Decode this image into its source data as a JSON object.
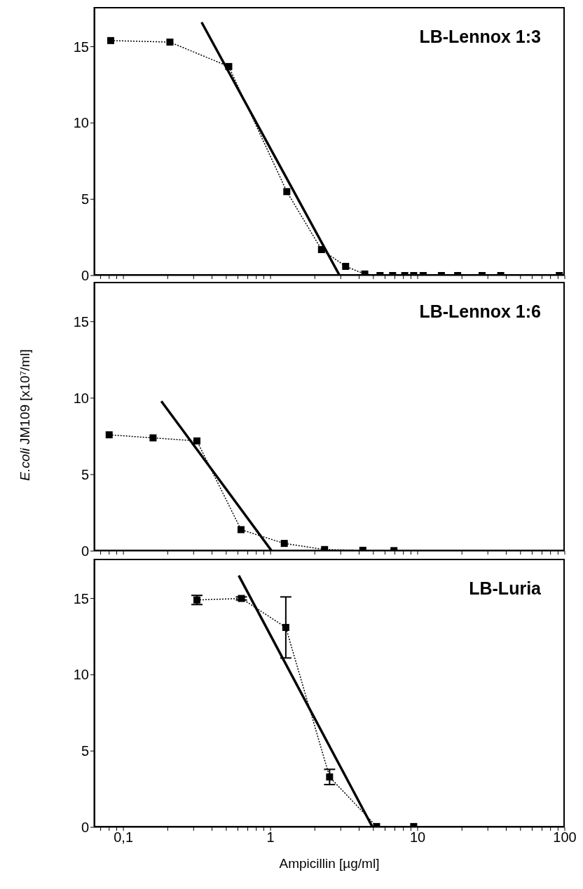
{
  "chart_data": [
    {
      "type": "line",
      "title": "LB-Lennox 1:3",
      "log": "x",
      "xlim": [
        0.063,
        100
      ],
      "xticks": [
        {
          "value": 0.07,
          "label": null
        },
        {
          "value": 0.08,
          "label": null
        },
        {
          "value": 0.09,
          "label": null
        },
        {
          "value": 0.1,
          "label": null
        },
        {
          "value": 0.2,
          "label": null
        },
        {
          "value": 0.3,
          "label": null
        },
        {
          "value": 0.4,
          "label": null
        },
        {
          "value": 0.5,
          "label": null
        },
        {
          "value": 0.6,
          "label": null
        },
        {
          "value": 0.7,
          "label": null
        },
        {
          "value": 0.8,
          "label": null
        },
        {
          "value": 0.9,
          "label": null
        },
        {
          "value": 1,
          "label": null
        },
        {
          "value": 2,
          "label": null
        },
        {
          "value": 3,
          "label": null
        },
        {
          "value": 4,
          "label": null
        },
        {
          "value": 5,
          "label": null
        },
        {
          "value": 6,
          "label": null
        },
        {
          "value": 7,
          "label": null
        },
        {
          "value": 8,
          "label": null
        },
        {
          "value": 9,
          "label": null
        },
        {
          "value": 10,
          "label": null
        },
        {
          "value": 20,
          "label": null
        },
        {
          "value": 30,
          "label": null
        },
        {
          "value": 40,
          "label": null
        },
        {
          "value": 50,
          "label": null
        },
        {
          "value": 60,
          "label": null
        },
        {
          "value": 70,
          "label": null
        },
        {
          "value": 80,
          "label": null
        },
        {
          "value": 90,
          "label": null
        },
        {
          "value": 100,
          "label": null
        }
      ],
      "ylim": [
        0,
        17.6
      ],
      "yticks": [
        0,
        5,
        10,
        15
      ],
      "tick_labels": "y",
      "series": [
        {
          "color": "#000000",
          "marker": "square",
          "line_style": "dotted",
          "x": [
            0.082,
            0.207,
            0.52,
            1.29,
            2.22,
            3.24,
            4.37,
            5.55,
            6.76,
            8.17,
            9.4,
            10.9,
            14.5,
            18.7,
            27.4,
            36.7,
            91.8
          ],
          "values": [
            15.4,
            15.3,
            13.7,
            5.5,
            1.7,
            0.6,
            0.1,
            0,
            0,
            0,
            0,
            0,
            0,
            0,
            0,
            0,
            0
          ]
        },
        {
          "color": "#000000",
          "marker": "none",
          "line_style": "solid",
          "x": [
            0.34,
            2.95
          ],
          "values": [
            16.6,
            0
          ]
        }
      ]
    },
    {
      "type": "line",
      "title": "LB-Lennox 1:6",
      "ylabel": "E.coli JM109 [x10⁷/ml]",
      "log": "x",
      "xlim": [
        0.063,
        100
      ],
      "xticks": [
        {
          "value": 0.07,
          "label": null
        },
        {
          "value": 0.08,
          "label": null
        },
        {
          "value": 0.09,
          "label": null
        },
        {
          "value": 0.1,
          "label": null
        },
        {
          "value": 0.2,
          "label": null
        },
        {
          "value": 0.3,
          "label": null
        },
        {
          "value": 0.4,
          "label": null
        },
        {
          "value": 0.5,
          "label": null
        },
        {
          "value": 0.6,
          "label": null
        },
        {
          "value": 0.7,
          "label": null
        },
        {
          "value": 0.8,
          "label": null
        },
        {
          "value": 0.9,
          "label": null
        },
        {
          "value": 1,
          "label": null
        },
        {
          "value": 2,
          "label": null
        },
        {
          "value": 3,
          "label": null
        },
        {
          "value": 4,
          "label": null
        },
        {
          "value": 5,
          "label": null
        },
        {
          "value": 6,
          "label": null
        },
        {
          "value": 7,
          "label": null
        },
        {
          "value": 8,
          "label": null
        },
        {
          "value": 9,
          "label": null
        },
        {
          "value": 10,
          "label": null
        },
        {
          "value": 20,
          "label": null
        },
        {
          "value": 30,
          "label": null
        },
        {
          "value": 40,
          "label": null
        },
        {
          "value": 50,
          "label": null
        },
        {
          "value": 60,
          "label": null
        },
        {
          "value": 70,
          "label": null
        },
        {
          "value": 80,
          "label": null
        },
        {
          "value": 90,
          "label": null
        },
        {
          "value": 100,
          "label": null
        }
      ],
      "ylim": [
        0,
        17.6
      ],
      "yticks": [
        0,
        5,
        10,
        15
      ],
      "tick_labels": "y",
      "series": [
        {
          "color": "#000000",
          "marker": "square",
          "line_style": "dotted",
          "x": [
            0.08,
            0.159,
            0.316,
            0.63,
            1.24,
            2.33,
            4.24,
            6.9
          ],
          "values": [
            7.6,
            7.4,
            7.2,
            1.4,
            0.5,
            0.1,
            0.05,
            0.03
          ]
        },
        {
          "color": "#000000",
          "marker": "none",
          "line_style": "solid",
          "x": [
            0.181,
            1.02
          ],
          "values": [
            9.8,
            0
          ]
        }
      ]
    },
    {
      "type": "line",
      "title": "LB-Luria",
      "xlabel": "Ampicillin [µg/ml]",
      "log": "x",
      "xlim": [
        0.063,
        100
      ],
      "xticks": [
        {
          "value": 0.07,
          "label": null
        },
        {
          "value": 0.08,
          "label": null
        },
        {
          "value": 0.09,
          "label": null
        },
        {
          "value": 0.1,
          "label": "0,1"
        },
        {
          "value": 0.2,
          "label": null
        },
        {
          "value": 0.3,
          "label": null
        },
        {
          "value": 0.4,
          "label": null
        },
        {
          "value": 0.5,
          "label": null
        },
        {
          "value": 0.6,
          "label": null
        },
        {
          "value": 0.7,
          "label": null
        },
        {
          "value": 0.8,
          "label": null
        },
        {
          "value": 0.9,
          "label": null
        },
        1,
        {
          "value": 2,
          "label": null
        },
        {
          "value": 3,
          "label": null
        },
        {
          "value": 4,
          "label": null
        },
        {
          "value": 5,
          "label": null
        },
        {
          "value": 6,
          "label": null
        },
        {
          "value": 7,
          "label": null
        },
        {
          "value": 8,
          "label": null
        },
        {
          "value": 9,
          "label": null
        },
        10,
        {
          "value": 20,
          "label": null
        },
        {
          "value": 30,
          "label": null
        },
        {
          "value": 40,
          "label": null
        },
        {
          "value": 50,
          "label": null
        },
        {
          "value": 60,
          "label": null
        },
        {
          "value": 70,
          "label": null
        },
        {
          "value": 80,
          "label": null
        },
        {
          "value": 90,
          "label": null
        },
        100
      ],
      "ylim": [
        0,
        17.6
      ],
      "yticks": [
        0,
        5,
        10,
        15
      ],
      "series": [
        {
          "color": "#000000",
          "marker": "square",
          "line_style": "dotted",
          "x": [
            0.316,
            0.634,
            1.27,
            2.52,
            5.26,
            9.4
          ],
          "values": [
            14.9,
            15.0,
            13.1,
            3.3,
            0.05,
            0.05
          ],
          "errors": [
            0.3,
            0.1,
            2.0,
            0.5,
            null,
            null
          ]
        },
        {
          "color": "#000000",
          "marker": "none",
          "line_style": "solid",
          "x": [
            0.608,
            4.94
          ],
          "values": [
            16.5,
            0
          ]
        }
      ]
    }
  ]
}
